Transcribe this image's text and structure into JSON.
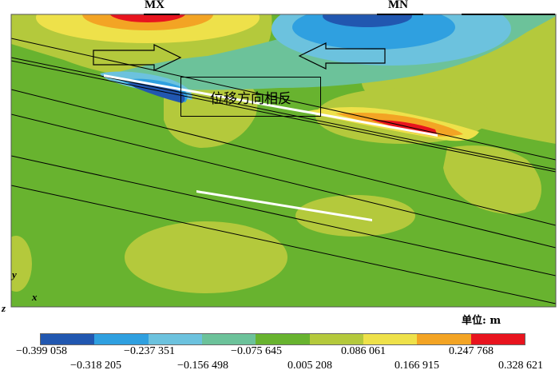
{
  "labels": {
    "mx": "MX",
    "mn": "MN",
    "annotation": "位移方向相反",
    "axis_y": "y",
    "axis_x": "x",
    "axis_z": "z",
    "unit": "单位: m"
  },
  "legend": {
    "colors": [
      "#2157b0",
      "#2fa0e0",
      "#6cc2de",
      "#6cc29a",
      "#68b32f",
      "#b4c93c",
      "#eee14a",
      "#f3a424",
      "#e8141e"
    ],
    "ticks_row1": [
      "−0.399 058",
      "−0.237 351",
      "−0.075 645",
      "0.086 061",
      "0.247 768"
    ],
    "ticks_row2": [
      "−0.318 205",
      "−0.156 498",
      "0.005 208",
      "0.166 915",
      "0.328 621"
    ]
  }
}
